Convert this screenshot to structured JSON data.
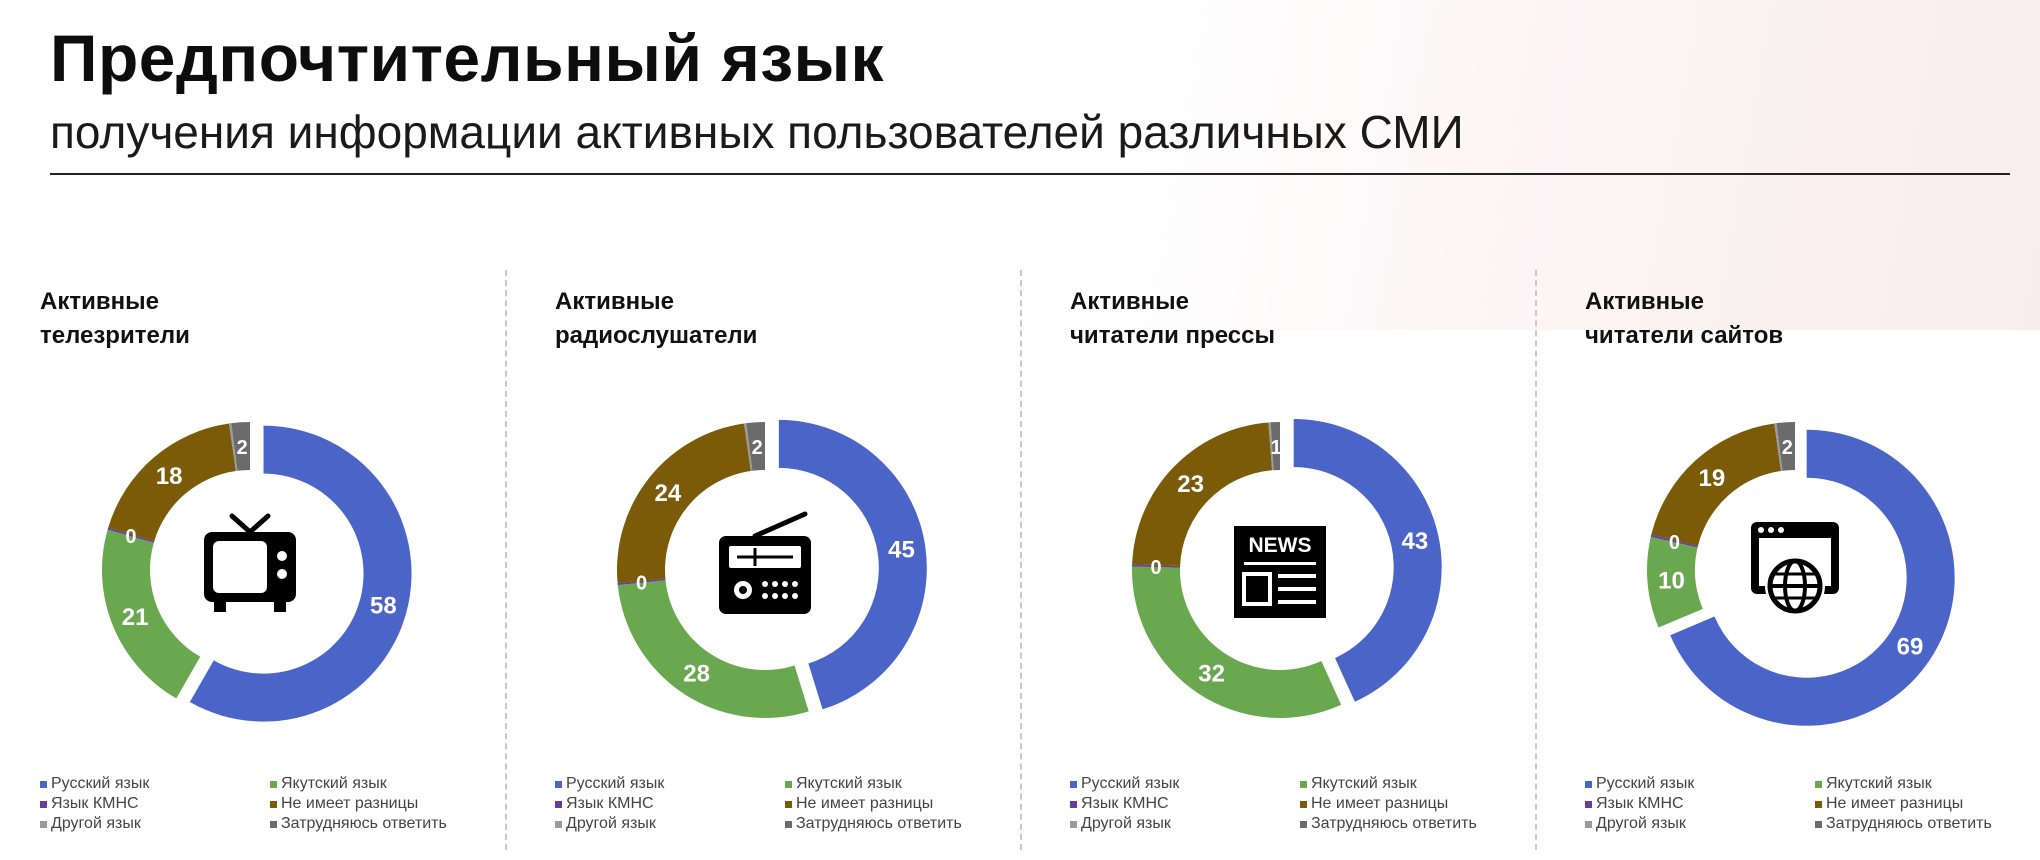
{
  "header": {
    "title": "Предпочтительный язык",
    "subtitle": "получения информации активных пользователей различных СМИ"
  },
  "colors": {
    "Русский язык": "#4a64c8",
    "Якутский язык": "#6aa84f",
    "Язык КМНС": "#6a3d9a",
    "Не имеет разницы": "#7b5a08",
    "Другой язык": "#9a9a9a",
    "Затрудняюсь ответить": "#6b6b6b"
  },
  "legend_labels": [
    "Русский язык",
    "Якутский язык",
    "Язык КМНС",
    "Не имеет разницы",
    "Другой язык",
    "Затрудняюсь ответить"
  ],
  "panels": [
    {
      "title_line1": "Активные",
      "title_line2": "телезрители",
      "icon": "tv-icon"
    },
    {
      "title_line1": "Активные",
      "title_line2": "радиослушатели",
      "icon": "radio-icon"
    },
    {
      "title_line1": "Активные",
      "title_line2": "читатели прессы",
      "icon": "newspaper-icon",
      "icon_text": "NEWS"
    },
    {
      "title_line1": "Активные",
      "title_line2": "читатели сайтов",
      "icon": "website-globe-icon"
    }
  ],
  "chart_data": [
    {
      "type": "pie",
      "title": "Активные телезрители",
      "categories": [
        "Русский язык",
        "Якутский язык",
        "Язык КМНС",
        "Не имеет разницы",
        "Другой язык",
        "Затрудняюсь ответить"
      ],
      "values": [
        58,
        21,
        0,
        18,
        0,
        2
      ],
      "labels": [
        "58",
        "21",
        "0",
        "18",
        "",
        "2"
      ]
    },
    {
      "type": "pie",
      "title": "Активные радиослушатели",
      "categories": [
        "Русский язык",
        "Якутский язык",
        "Язык КМНС",
        "Не имеет разницы",
        "Другой язык",
        "Затрудняюсь ответить"
      ],
      "values": [
        45,
        28,
        0,
        24,
        0,
        2
      ],
      "labels": [
        "45",
        "28",
        "0",
        "24",
        "",
        "2"
      ]
    },
    {
      "type": "pie",
      "title": "Активные читатели прессы",
      "categories": [
        "Русский язык",
        "Якутский язык",
        "Язык КМНС",
        "Не имеет разницы",
        "Другой язык",
        "Затрудняюсь ответить"
      ],
      "values": [
        43,
        32,
        0,
        23,
        0,
        1
      ],
      "labels": [
        "43",
        "32",
        "0",
        "23",
        "",
        "1"
      ]
    },
    {
      "type": "pie",
      "title": "Активные читатели сайтов",
      "categories": [
        "Русский язык",
        "Якутский язык",
        "Язык КМНС",
        "Не имеет разницы",
        "Другой язык",
        "Затрудняюсь ответить"
      ],
      "values": [
        69,
        10,
        0,
        19,
        0,
        2
      ],
      "labels": [
        "69",
        "10",
        "0",
        "19",
        "",
        "2"
      ]
    }
  ]
}
